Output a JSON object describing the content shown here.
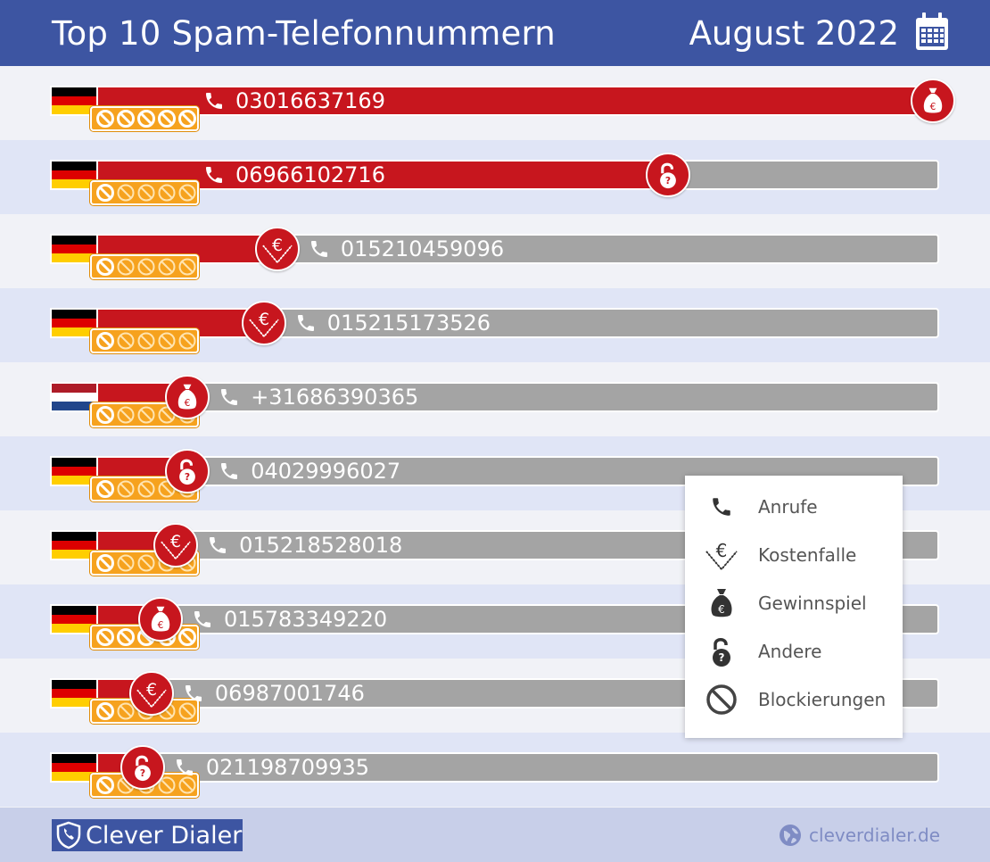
{
  "header": {
    "title": "Top 10 Spam-Telefonnummern",
    "date": "August 2022",
    "calendar_icon": "calendar-icon"
  },
  "chart_data": {
    "type": "bar",
    "title": "Top 10 Spam-Telefonnummern",
    "subtitle": "August 2022",
    "value_scale": [
      0,
      1
    ],
    "rows": [
      {
        "number": "03016637169",
        "country": "DE",
        "value": 1.0,
        "category": "Gewinnspiel",
        "rating": 5
      },
      {
        "number": "06966102716",
        "country": "DE",
        "value": 0.705,
        "category": "Andere",
        "rating": 1
      },
      {
        "number": "015210459096",
        "country": "DE",
        "value": 0.27,
        "category": "Kostenfalle",
        "rating": 1
      },
      {
        "number": "015215173526",
        "country": "DE",
        "value": 0.255,
        "category": "Kostenfalle",
        "rating": 1
      },
      {
        "number": "+31686390365",
        "country": "NL",
        "value": 0.17,
        "category": "Gewinnspiel",
        "rating": 1
      },
      {
        "number": "04029996027",
        "country": "DE",
        "value": 0.17,
        "category": "Andere",
        "rating": 1
      },
      {
        "number": "015218528018",
        "country": "DE",
        "value": 0.157,
        "category": "Kostenfalle",
        "rating": 1
      },
      {
        "number": "015783349220",
        "country": "DE",
        "value": 0.14,
        "category": "Gewinnspiel",
        "rating": 5
      },
      {
        "number": "06987001746",
        "country": "DE",
        "value": 0.13,
        "category": "Kostenfalle",
        "rating": 1
      },
      {
        "number": "021198709935",
        "country": "DE",
        "value": 0.12,
        "category": "Andere",
        "rating": 1
      }
    ],
    "legend": [
      "Anrufe",
      "Kostenfalle",
      "Gewinnspiel",
      "Andere",
      "Blockierungen"
    ],
    "colors": {
      "bar": "#c7161e",
      "track": "#a4a4a4",
      "rating": "#f6a21e",
      "header": "#3d55a2"
    }
  },
  "legend": [
    {
      "label": "Anrufe",
      "icon": "phone-icon"
    },
    {
      "label": "Kostenfalle",
      "icon": "cost-trap-icon"
    },
    {
      "label": "Gewinnspiel",
      "icon": "money-bag-icon"
    },
    {
      "label": "Andere",
      "icon": "open-lock-icon"
    },
    {
      "label": "Blockierungen",
      "icon": "block-icon"
    }
  ],
  "footer": {
    "brand": "Clever Dialer",
    "website": "cleverdialer.de"
  }
}
